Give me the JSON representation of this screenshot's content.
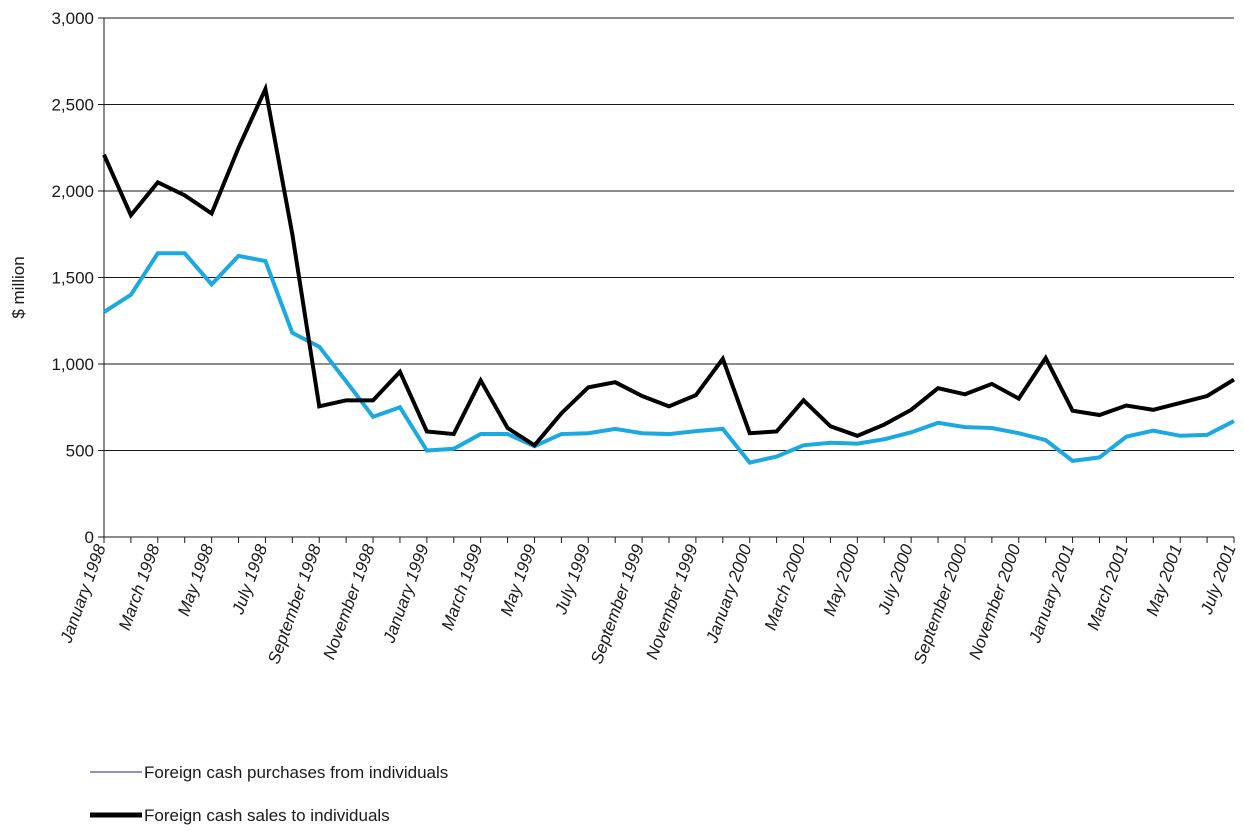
{
  "chart_data": {
    "type": "line",
    "title": "",
    "xlabel": "",
    "ylabel": "$ million",
    "ylim": [
      0,
      3000
    ],
    "yticks": [
      0,
      500,
      1000,
      1500,
      2000,
      2500,
      3000
    ],
    "ytick_labels": [
      "0",
      "500",
      "1,000",
      "1,500",
      "2,000",
      "2,500",
      "3,000"
    ],
    "grid": "horizontal",
    "legend_position": "bottom-left",
    "x": [
      "January 1998",
      "February 1998",
      "March 1998",
      "April 1998",
      "May 1998",
      "June 1998",
      "July 1998",
      "August 1998",
      "September 1998",
      "October 1998",
      "November 1998",
      "December 1998",
      "January 1999",
      "February 1999",
      "March 1999",
      "April 1999",
      "May 1999",
      "June 1999",
      "July 1999",
      "August 1999",
      "September 1999",
      "October 1999",
      "November 1999",
      "December 1999",
      "January 2000",
      "February 2000",
      "March 2000",
      "April 2000",
      "May 2000",
      "June 2000",
      "July 2000",
      "August 2000",
      "September 2000",
      "October 2000",
      "November 2000",
      "December 2000",
      "January 2001",
      "February 2001",
      "March 2001",
      "April 2001",
      "May 2001",
      "June 2001",
      "July 2001"
    ],
    "x_tick_labels": [
      "January 1998",
      "March 1998",
      "May 1998",
      "July 1998",
      "September 1998",
      "November 1998",
      "January 1999",
      "March 1999",
      "May 1999",
      "July 1999",
      "September 1999",
      "November 1999",
      "January 2000",
      "March 2000",
      "May 2000",
      "July 2000",
      "September 2000",
      "November 2000",
      "January 2001",
      "March 2001",
      "May 2001",
      "July 2001"
    ],
    "series": [
      {
        "name": "Foreign cash purchases from individuals",
        "color": "#1ba9e1",
        "legend_color": "#4b4fa8",
        "values": [
          1300,
          1400,
          1640,
          1640,
          1460,
          1625,
          1595,
          1180,
          1100,
          900,
          695,
          750,
          500,
          510,
          595,
          595,
          525,
          595,
          600,
          625,
          600,
          595,
          612,
          625,
          430,
          465,
          530,
          545,
          540,
          565,
          605,
          660,
          635,
          630,
          600,
          560,
          440,
          460,
          580,
          615,
          585,
          590,
          670
        ]
      },
      {
        "name": "Foreign cash sales to individuals",
        "color": "#000000",
        "legend_color": "#000000",
        "values": [
          2210,
          1860,
          2050,
          1975,
          1870,
          2250,
          2590,
          1750,
          755,
          790,
          790,
          955,
          610,
          595,
          905,
          630,
          530,
          715,
          865,
          895,
          815,
          755,
          820,
          1030,
          600,
          610,
          790,
          640,
          585,
          650,
          735,
          860,
          825,
          885,
          800,
          1035,
          730,
          705,
          760,
          735,
          775,
          815,
          910
        ]
      }
    ]
  }
}
